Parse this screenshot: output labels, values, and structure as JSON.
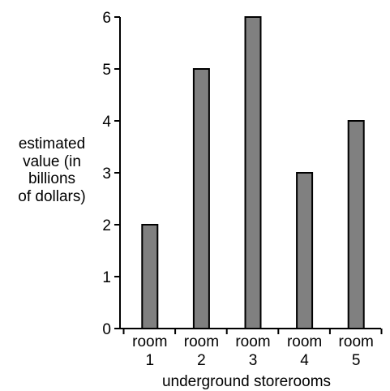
{
  "chart_data": {
    "type": "bar",
    "categories": [
      {
        "line1": "room",
        "line2": "1"
      },
      {
        "line1": "room",
        "line2": "2"
      },
      {
        "line1": "room",
        "line2": "3"
      },
      {
        "line1": "room",
        "line2": "4"
      },
      {
        "line1": "room",
        "line2": "5"
      }
    ],
    "values": [
      2,
      5,
      6,
      3,
      4
    ],
    "xlabel": "underground storerooms",
    "ylabel_lines": [
      "estimated",
      "value (in",
      "billions",
      "of dollars)"
    ],
    "ylim": [
      0,
      6
    ],
    "yticks": [
      "0",
      "1",
      "2",
      "3",
      "4",
      "5",
      "6"
    ],
    "grid": false,
    "bar_color": "#808080",
    "bar_stroke": "#000000"
  }
}
